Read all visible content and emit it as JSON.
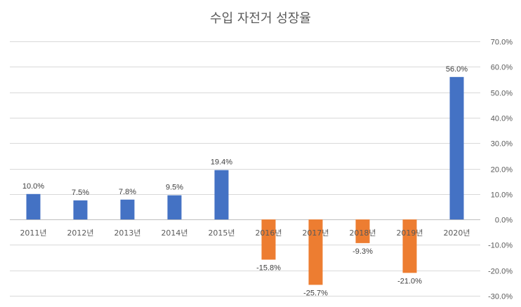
{
  "chart_data": {
    "type": "bar",
    "title": "수입 자전거 성장율",
    "categories": [
      "2011년",
      "2012년",
      "2013년",
      "2014년",
      "2015년",
      "2016년",
      "2017년",
      "2018년",
      "2019년",
      "2020년"
    ],
    "values": [
      10.0,
      7.5,
      7.8,
      9.5,
      19.4,
      -15.8,
      -25.7,
      -9.3,
      -21.0,
      56.0
    ],
    "data_labels": [
      "10.0%",
      "7.5%",
      "7.8%",
      "9.5%",
      "19.4%",
      "-15.8%",
      "-25.7%",
      "-9.3%",
      "-21.0%",
      "56.0%"
    ],
    "y_ticks": [
      70,
      60,
      50,
      40,
      30,
      20,
      10,
      0,
      -10,
      -20,
      -30
    ],
    "y_tick_labels": [
      "70.0%",
      "60.0%",
      "50.0%",
      "40.0%",
      "30.0%",
      "20.0%",
      "10.0%",
      "0.0%",
      "-10.0%",
      "-20.0%",
      "-30.0%"
    ],
    "ylim": [
      -30,
      70
    ],
    "y_axis_position": "right",
    "grid": true,
    "legend": "none",
    "colors": {
      "positive": "#4472c4",
      "negative": "#ed7d31"
    }
  }
}
